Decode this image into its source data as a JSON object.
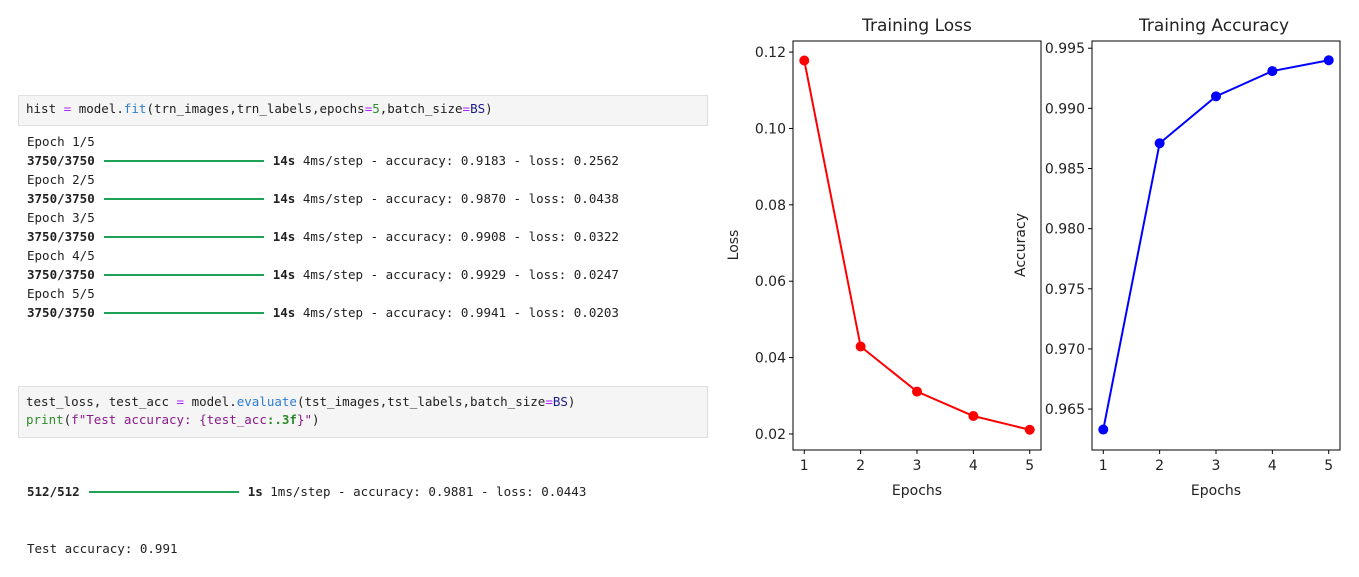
{
  "cell1": {
    "code": {
      "lhs": "hist",
      "op": "=",
      "obj": "model.",
      "fn": "fit",
      "args_a": "(trn_images,trn_labels,epochs",
      "eq1": "=",
      "epochs_val": "5",
      "args_b": ",batch_size",
      "eq2": "=",
      "bs_val": "BS",
      "close": ")"
    },
    "output": [
      {
        "epoch": "Epoch 1/5",
        "steps": "3750/3750",
        "time": "14s",
        "rest": "4ms/step - accuracy: 0.9183 - loss: 0.2562"
      },
      {
        "epoch": "Epoch 2/5",
        "steps": "3750/3750",
        "time": "14s",
        "rest": "4ms/step - accuracy: 0.9870 - loss: 0.0438"
      },
      {
        "epoch": "Epoch 3/5",
        "steps": "3750/3750",
        "time": "14s",
        "rest": "4ms/step - accuracy: 0.9908 - loss: 0.0322"
      },
      {
        "epoch": "Epoch 4/5",
        "steps": "3750/3750",
        "time": "14s",
        "rest": "4ms/step - accuracy: 0.9929 - loss: 0.0247"
      },
      {
        "epoch": "Epoch 5/5",
        "steps": "3750/3750",
        "time": "14s",
        "rest": "4ms/step - accuracy: 0.9941 - loss: 0.0203"
      }
    ]
  },
  "cell2": {
    "line1": {
      "lhs": "test_loss, test_acc ",
      "op": "=",
      "obj": " model.",
      "fn": "evaluate",
      "args": "(tst_images,tst_labels,batch_size",
      "eq": "=",
      "bs_val": "BS",
      "close": ")"
    },
    "line2": {
      "fn": "print",
      "open": "(",
      "fstr_a": "f\"Test accuracy: {",
      "var": "test_acc",
      "fmt": ":.3f",
      "fstr_b": "}\"",
      "close": ")"
    },
    "output": {
      "steps": "512/512",
      "time": "1s",
      "rest": "1ms/step - accuracy: 0.9881 - loss: 0.0443",
      "result": "Test accuracy: 0.991"
    }
  },
  "colors": {
    "loss_line": "#ff0000",
    "accuracy_line": "#0000ff",
    "progress_bar": "#1fa357",
    "cell_bg": "#f5f5f5"
  },
  "chart_data": [
    {
      "type": "line",
      "title": "Training Loss",
      "xlabel": "Epochs",
      "ylabel": "Loss",
      "x": [
        1,
        2,
        3,
        4,
        5
      ],
      "series": [
        {
          "name": "Loss",
          "color": "#ff0000",
          "marker": "o",
          "values": [
            0.1178,
            0.0429,
            0.0311,
            0.0247,
            0.0211
          ]
        }
      ],
      "xticks": [
        "1",
        "2",
        "3",
        "4",
        "5"
      ],
      "yticks": [
        "0.02",
        "0.04",
        "0.06",
        "0.08",
        "0.10",
        "0.12"
      ],
      "ylim": [
        0.0158,
        0.1229
      ],
      "grid": false,
      "legend": null
    },
    {
      "type": "line",
      "title": "Training Accuracy",
      "xlabel": "Epochs",
      "ylabel": "Accuracy",
      "x": [
        1,
        2,
        3,
        4,
        5
      ],
      "series": [
        {
          "name": "Accuracy",
          "color": "#0000ff",
          "marker": "o",
          "values": [
            0.9633,
            0.9871,
            0.991,
            0.9931,
            0.994
          ]
        }
      ],
      "xticks": [
        "1",
        "2",
        "3",
        "4",
        "5"
      ],
      "yticks": [
        "0.965",
        "0.970",
        "0.975",
        "0.980",
        "0.985",
        "0.990",
        "0.995"
      ],
      "ylim": [
        0.9616,
        0.9956
      ],
      "grid": false,
      "legend": null
    }
  ]
}
